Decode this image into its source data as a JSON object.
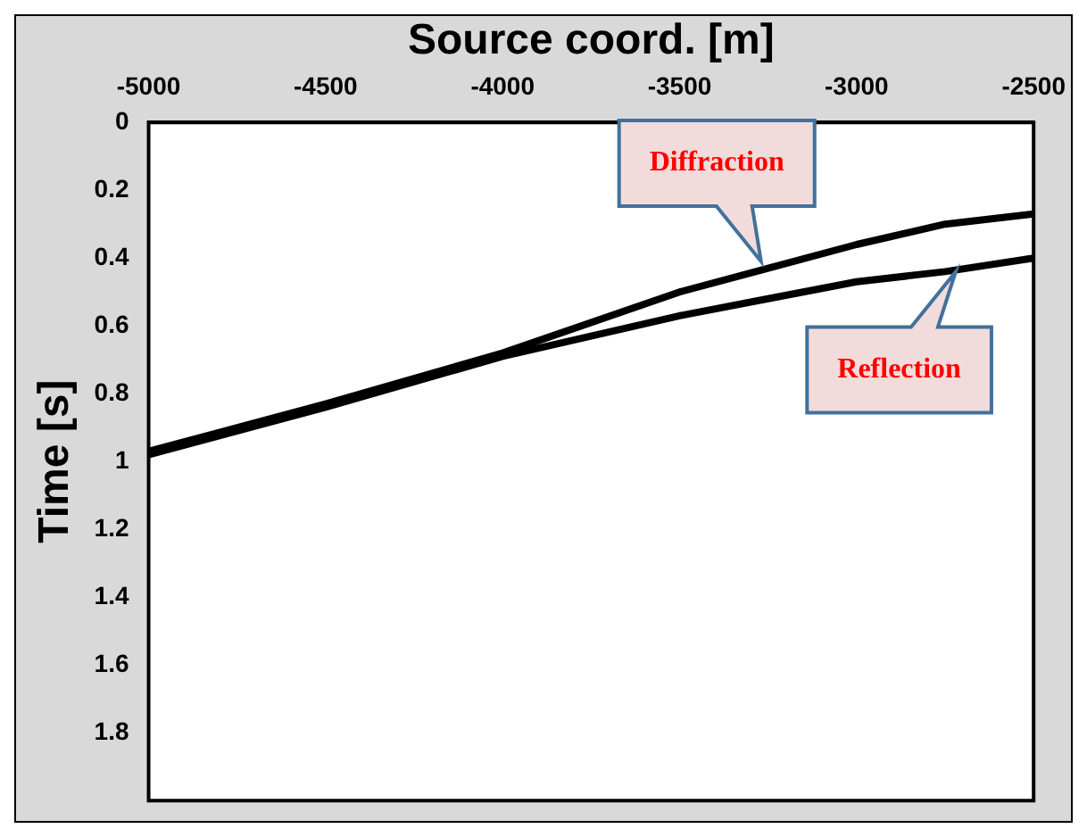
{
  "chart_data": {
    "type": "line",
    "xlabel": "Source coord. [m]",
    "ylabel": "Time [s]",
    "xlim": [
      -5000,
      -2500
    ],
    "xticks": [
      -5000,
      -4500,
      -4000,
      -3500,
      -3000,
      -2500
    ],
    "ylim": [
      2,
      0
    ],
    "yticks": [
      0,
      0.2,
      0.4,
      0.6,
      0.8,
      1,
      1.2,
      1.4,
      1.6,
      1.8
    ],
    "grid": false,
    "legend": false,
    "marker": "none",
    "line_style": "solid",
    "series": [
      {
        "color": "#000000",
        "x": [
          -5000,
          -4500,
          -4000,
          -3500,
          -3250,
          -3000,
          -2750,
          -2500
        ],
        "values": [
          0.97,
          0.83,
          0.68,
          0.5,
          0.43,
          0.36,
          0.3,
          0.27
        ]
      },
      {
        "color": "#000000",
        "x": [
          -5000,
          -4500,
          -4000,
          -3500,
          -3250,
          -3000,
          -2750,
          -2500
        ],
        "values": [
          0.98,
          0.84,
          0.69,
          0.57,
          0.52,
          0.47,
          0.44,
          0.4
        ]
      }
    ],
    "annotations": [
      {
        "text": "Diffraction",
        "x": -3270,
        "y": 0.41
      },
      {
        "text": "Reflection",
        "x": -2720,
        "y": 0.44
      }
    ]
  }
}
